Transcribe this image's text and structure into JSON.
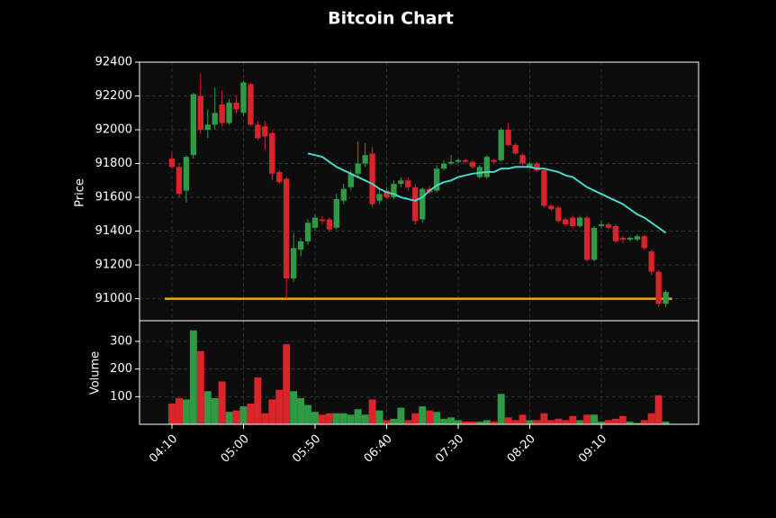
{
  "chart_data": {
    "type": "candlestick",
    "title": "Bitcoin Chart",
    "ylabel": "Price",
    "volume_label": "Volume",
    "categories": [
      "04:10",
      "04:15",
      "04:20",
      "04:25",
      "04:30",
      "04:35",
      "04:40",
      "04:45",
      "04:50",
      "04:55",
      "05:00",
      "05:05",
      "05:10",
      "05:15",
      "05:20",
      "05:25",
      "05:30",
      "05:35",
      "05:40",
      "05:45",
      "05:50",
      "05:55",
      "06:00",
      "06:05",
      "06:10",
      "06:15",
      "06:20",
      "06:25",
      "06:30",
      "06:35",
      "06:40",
      "06:45",
      "06:50",
      "06:55",
      "07:00",
      "07:05",
      "07:10",
      "07:15",
      "07:20",
      "07:25",
      "07:30",
      "07:35",
      "07:40",
      "07:45",
      "07:50",
      "07:55",
      "08:00",
      "08:05",
      "08:10",
      "08:15",
      "08:20",
      "08:25",
      "08:30",
      "08:35",
      "08:40",
      "08:45",
      "08:50",
      "08:55",
      "09:00",
      "09:05",
      "09:10",
      "09:15",
      "09:20",
      "09:25",
      "09:30",
      "09:35",
      "09:40",
      "09:45",
      "09:50",
      "09:55"
    ],
    "open": [
      91830,
      91780,
      91640,
      91850,
      92200,
      92000,
      92030,
      92150,
      92040,
      92160,
      92100,
      92270,
      92030,
      92020,
      91980,
      91750,
      91710,
      91120,
      91290,
      91340,
      91420,
      91470,
      91470,
      91420,
      91580,
      91660,
      91740,
      91800,
      91860,
      91580,
      91640,
      91600,
      91680,
      91700,
      91660,
      91470,
      91650,
      91640,
      91770,
      91800,
      91810,
      91820,
      91810,
      91720,
      91720,
      91820,
      91820,
      92000,
      91910,
      91850,
      91780,
      91800,
      91760,
      91550,
      91540,
      91470,
      91480,
      91430,
      91480,
      91230,
      91430,
      91440,
      91430,
      91360,
      91350,
      91350,
      91370,
      91280,
      91160,
      90970
    ],
    "high": [
      91870,
      91800,
      91850,
      92220,
      92330,
      92120,
      92250,
      92230,
      92180,
      92200,
      92290,
      92280,
      92050,
      92050,
      91990,
      91760,
      91720,
      91390,
      91360,
      91470,
      91500,
      91490,
      91480,
      91620,
      91680,
      91760,
      91930,
      91920,
      91900,
      91650,
      91660,
      91700,
      91720,
      91720,
      91680,
      91660,
      91670,
      91790,
      91820,
      91850,
      91830,
      91830,
      91820,
      91790,
      91850,
      91830,
      92010,
      92040,
      91920,
      91860,
      91810,
      91810,
      91770,
      91560,
      91550,
      91480,
      91490,
      91490,
      91490,
      91430,
      91460,
      91450,
      91440,
      91370,
      91370,
      91380,
      91380,
      91290,
      91170,
      91050
    ],
    "low": [
      91770,
      91600,
      91570,
      91830,
      91980,
      91950,
      92000,
      92020,
      92030,
      92100,
      92080,
      92020,
      91940,
      91880,
      91700,
      91680,
      91000,
      91100,
      91250,
      91320,
      91400,
      91440,
      91400,
      91410,
      91560,
      91640,
      91720,
      91780,
      91540,
      91560,
      91590,
      91590,
      91660,
      91640,
      91440,
      91450,
      91620,
      91630,
      91760,
      91790,
      91800,
      91800,
      91770,
      91710,
      91710,
      91800,
      91810,
      91900,
      91850,
      91790,
      91770,
      91750,
      91540,
      91520,
      91450,
      91430,
      91420,
      91420,
      91220,
      91220,
      91420,
      91410,
      91330,
      91330,
      91340,
      91340,
      91290,
      91140,
      90950,
      90950
    ],
    "close": [
      91780,
      91620,
      91840,
      92210,
      92000,
      92030,
      92100,
      92040,
      92160,
      92120,
      92280,
      92030,
      91950,
      91960,
      91740,
      91690,
      91120,
      91300,
      91340,
      91450,
      91480,
      91460,
      91410,
      91590,
      91650,
      91740,
      91800,
      91850,
      91560,
      91620,
      91600,
      91680,
      91700,
      91660,
      91460,
      91650,
      91630,
      91770,
      91800,
      91810,
      91820,
      91810,
      91780,
      91780,
      91840,
      91810,
      92000,
      91910,
      91860,
      91800,
      91800,
      91760,
      91550,
      91530,
      91460,
      91440,
      91430,
      91480,
      91230,
      91420,
      91440,
      91420,
      91340,
      91350,
      91360,
      91370,
      91300,
      91160,
      90970,
      91040
    ],
    "volume": [
      75,
      95,
      90,
      340,
      265,
      120,
      95,
      155,
      45,
      50,
      65,
      75,
      170,
      40,
      90,
      125,
      290,
      120,
      95,
      70,
      45,
      35,
      40,
      40,
      40,
      35,
      55,
      35,
      90,
      50,
      15,
      20,
      60,
      15,
      40,
      65,
      50,
      45,
      20,
      25,
      15,
      10,
      10,
      10,
      15,
      10,
      110,
      25,
      15,
      35,
      15,
      15,
      40,
      15,
      20,
      15,
      30,
      15,
      35,
      35,
      10,
      15,
      20,
      30,
      10,
      5,
      15,
      40,
      105,
      10
    ],
    "ma": {
      "color": "#48d8c8",
      "values": [
        null,
        null,
        null,
        null,
        null,
        null,
        null,
        null,
        null,
        null,
        null,
        null,
        null,
        null,
        null,
        null,
        null,
        null,
        null,
        91860,
        91850,
        91840,
        91810,
        91780,
        91760,
        91740,
        91720,
        91700,
        91680,
        91650,
        91630,
        91620,
        91600,
        91590,
        91580,
        91600,
        91640,
        91670,
        91690,
        91700,
        91720,
        91730,
        91740,
        91745,
        91750,
        91750,
        91770,
        91770,
        91780,
        91780,
        91780,
        91770,
        91770,
        91760,
        91750,
        91730,
        91720,
        91690,
        91660,
        91640,
        91620,
        91600,
        91580,
        91560,
        91530,
        91500,
        91480,
        91450,
        91420,
        91390
      ]
    },
    "hline": {
      "value": 91000,
      "color": "#f0a030"
    },
    "up_color": "#2e9a46",
    "down_color": "#d8242a",
    "ylim": [
      90870,
      92400
    ],
    "yticks": [
      91000,
      91200,
      91400,
      91600,
      91800,
      92000,
      92200,
      92400
    ],
    "volume_ylim": [
      0,
      375
    ],
    "volume_yticks": [
      100,
      200,
      300
    ],
    "xticks": [
      "04:10",
      "05:00",
      "05:50",
      "06:40",
      "07:30",
      "08:20",
      "09:10"
    ],
    "grid": true
  }
}
